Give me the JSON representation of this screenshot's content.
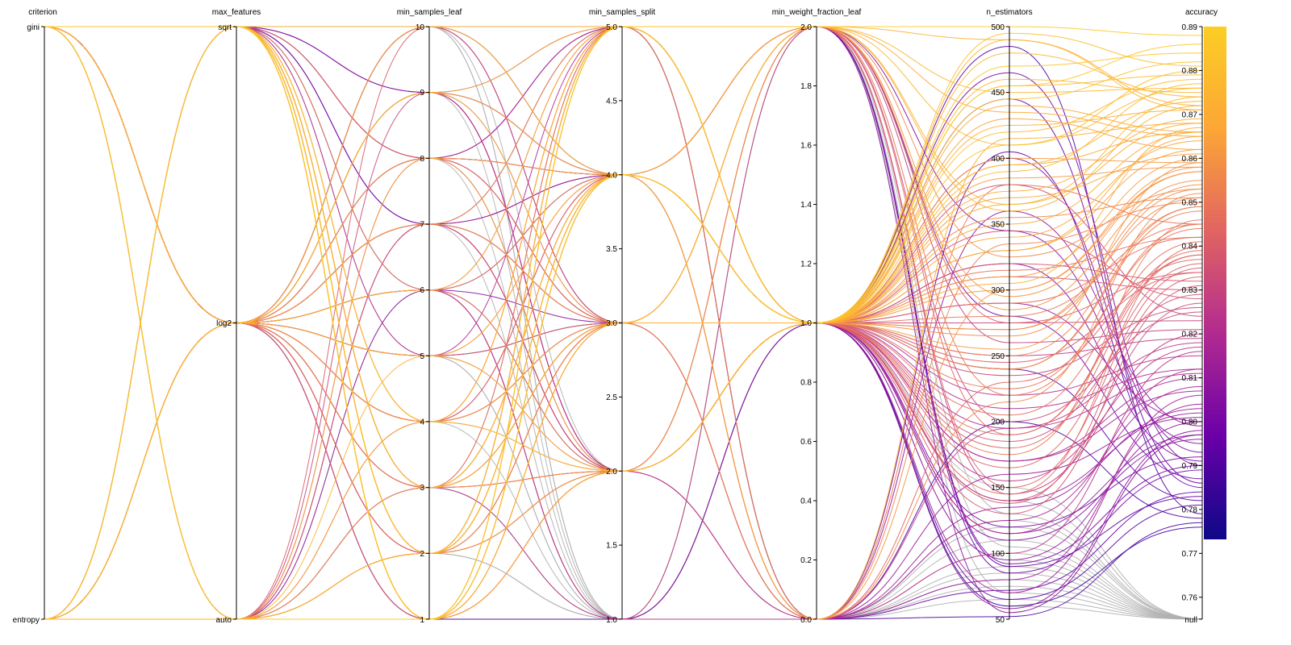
{
  "chart_data": {
    "type": "parallel-coordinates",
    "title": "",
    "dimensions": [
      {
        "name": "criterion",
        "kind": "categorical",
        "categories": [
          "gini",
          "entropy"
        ]
      },
      {
        "name": "max_features",
        "kind": "categorical",
        "categories": [
          "sqrt",
          "log2",
          "auto"
        ]
      },
      {
        "name": "min_samples_leaf",
        "kind": "numeric",
        "range": [
          1,
          10
        ],
        "ticks": [
          1,
          2,
          3,
          4,
          5,
          6,
          7,
          8,
          9,
          10
        ]
      },
      {
        "name": "min_samples_split",
        "kind": "numeric",
        "range": [
          1.0,
          5.0
        ],
        "ticks": [
          "1.0",
          "1.5",
          "2.0",
          "2.5",
          "3.0",
          "3.5",
          "4.0",
          "4.5",
          "5.0"
        ]
      },
      {
        "name": "min_weight_fraction_leaf",
        "kind": "numeric",
        "range": [
          0.0,
          2.0
        ],
        "ticks": [
          "0.0",
          "0.2",
          "0.4",
          "0.6",
          "0.8",
          "1.0",
          "1.2",
          "1.4",
          "1.6",
          "1.8",
          "2.0"
        ]
      },
      {
        "name": "n_estimators",
        "kind": "numeric",
        "range": [
          50,
          500
        ],
        "ticks": [
          "50",
          "100",
          "150",
          "200",
          "250",
          "300",
          "350",
          "400",
          "450",
          "500"
        ]
      },
      {
        "name": "accuracy",
        "kind": "numeric",
        "range": [
          0.755,
          0.89
        ],
        "ticks": [
          "0.76",
          "0.77",
          "0.78",
          "0.79",
          "0.80",
          "0.81",
          "0.82",
          "0.83",
          "0.84",
          "0.85",
          "0.86",
          "0.87",
          "0.88",
          "0.89"
        ],
        "extra_bottom_label": "null"
      }
    ],
    "colorscale": {
      "name": "plasma",
      "domain": [
        0.76,
        0.89
      ],
      "null_color": "#b0b0b0",
      "stops": [
        "#0d0887",
        "#6a00a8",
        "#b12a90",
        "#e16462",
        "#fca636",
        "#fcce25"
      ]
    },
    "grid": false,
    "legend": "colorbar-right",
    "rows": [
      [
        "gini",
        "log2",
        10,
        5.0,
        2.0,
        490,
        0.871
      ],
      [
        "gini",
        "log2",
        9,
        4.0,
        1.0,
        430,
        0.862
      ],
      [
        "gini",
        "sqrt",
        8,
        3.0,
        0.0,
        380,
        0.845
      ],
      [
        "gini",
        "auto",
        7,
        2.0,
        1.0,
        320,
        0.832
      ],
      [
        "gini",
        "log2",
        6,
        1.0,
        2.0,
        260,
        0.821
      ],
      [
        "gini",
        "sqrt",
        5,
        5.0,
        1.0,
        210,
        0.812
      ],
      [
        "gini",
        "log2",
        4,
        4.0,
        0.0,
        160,
        0.801
      ],
      [
        "gini",
        "auto",
        3,
        3.0,
        1.0,
        120,
        0.792
      ],
      [
        "gini",
        "log2",
        2,
        2.0,
        2.0,
        90,
        0.783
      ],
      [
        "gini",
        "log2",
        1,
        1.0,
        1.0,
        60,
        0.776
      ],
      [
        "entropy",
        "sqrt",
        10,
        4.0,
        1.0,
        470,
        0.884
      ],
      [
        "entropy",
        "log2",
        9,
        3.0,
        2.0,
        410,
        0.876
      ],
      [
        "entropy",
        "auto",
        8,
        2.0,
        1.0,
        350,
        0.866
      ],
      [
        "entropy",
        "log2",
        7,
        5.0,
        0.0,
        300,
        0.857
      ],
      [
        "entropy",
        "sqrt",
        6,
        4.0,
        1.0,
        250,
        0.849
      ],
      [
        "entropy",
        "log2",
        5,
        3.0,
        2.0,
        190,
        0.838
      ],
      [
        "entropy",
        "auto",
        4,
        2.0,
        1.0,
        140,
        0.827
      ],
      [
        "entropy",
        "log2",
        3,
        1.0,
        0.0,
        100,
        0.816
      ],
      [
        "entropy",
        "sqrt",
        2,
        5.0,
        1.0,
        70,
        0.806
      ],
      [
        "entropy",
        "log2",
        1,
        4.0,
        2.0,
        55,
        0.797
      ],
      [
        "gini",
        "sqrt",
        1,
        5.0,
        2.0,
        500,
        0.888
      ],
      [
        "gini",
        "sqrt",
        2,
        4.0,
        1.0,
        455,
        0.879
      ],
      [
        "gini",
        "sqrt",
        3,
        4.0,
        1.0,
        395,
        0.873
      ],
      [
        "gini",
        "sqrt",
        4,
        5.0,
        1.0,
        365,
        0.868
      ],
      [
        "gini",
        "sqrt",
        1,
        3.0,
        1.0,
        340,
        0.864
      ],
      [
        "gini",
        "sqrt",
        2,
        2.0,
        1.0,
        310,
        0.86
      ],
      [
        "gini",
        "sqrt",
        1,
        4.0,
        2.0,
        285,
        0.855
      ],
      [
        "gini",
        "sqrt",
        3,
        5.0,
        1.0,
        270,
        0.851
      ],
      [
        "gini",
        "sqrt",
        2,
        3.0,
        1.0,
        240,
        0.848
      ],
      [
        "gini",
        "sqrt",
        1,
        2.0,
        1.0,
        225,
        0.844
      ],
      [
        "gini",
        "sqrt",
        4,
        4.0,
        1.0,
        205,
        0.841
      ],
      [
        "gini",
        "sqrt",
        1,
        5.0,
        1.0,
        180,
        0.838
      ],
      [
        "gini",
        "sqrt",
        2,
        4.0,
        2.0,
        150,
        0.835
      ],
      [
        "gini",
        "sqrt",
        3,
        3.0,
        1.0,
        130,
        0.831
      ],
      [
        "gini",
        "sqrt",
        1,
        4.0,
        1.0,
        420,
        0.878
      ],
      [
        "gini",
        "sqrt",
        2,
        5.0,
        1.0,
        445,
        0.882
      ],
      [
        "gini",
        "sqrt",
        1,
        3.0,
        1.0,
        375,
        0.869
      ],
      [
        "gini",
        "sqrt",
        3,
        4.0,
        1.0,
        330,
        0.862
      ],
      [
        "gini",
        "sqrt",
        1,
        2.0,
        2.0,
        295,
        0.857
      ],
      [
        "gini",
        "sqrt",
        2,
        4.0,
        1.0,
        265,
        0.853
      ],
      [
        "gini",
        "log2",
        9,
        5.0,
        1.0,
        480,
        0.874
      ],
      [
        "gini",
        "log2",
        8,
        4.0,
        1.0,
        440,
        0.866
      ],
      [
        "gini",
        "log2",
        7,
        3.0,
        1.0,
        400,
        0.859
      ],
      [
        "gini",
        "log2",
        6,
        2.0,
        1.0,
        355,
        0.851
      ],
      [
        "gini",
        "log2",
        5,
        4.0,
        1.0,
        315,
        0.842
      ],
      [
        "gini",
        "log2",
        4,
        5.0,
        2.0,
        275,
        0.834
      ],
      [
        "gini",
        "log2",
        3,
        3.0,
        1.0,
        235,
        0.826
      ],
      [
        "gini",
        "log2",
        2,
        2.0,
        0.0,
        195,
        0.818
      ],
      [
        "gini",
        "log2",
        10,
        4.0,
        1.0,
        170,
        0.81
      ],
      [
        "gini",
        "log2",
        9,
        3.0,
        0.0,
        135,
        0.803
      ],
      [
        "gini",
        "log2",
        8,
        2.0,
        1.0,
        110,
        0.796
      ],
      [
        "gini",
        "log2",
        7,
        5.0,
        2.0,
        85,
        0.789
      ],
      [
        "gini",
        "log2",
        6,
        4.0,
        1.0,
        65,
        0.781
      ],
      [
        "gini",
        "log2",
        5,
        3.0,
        0.0,
        52,
        0.777
      ],
      [
        "gini",
        "log2",
        10,
        3.0,
        1.0,
        465,
        0.79
      ],
      [
        "gini",
        "log2",
        8,
        5.0,
        0.0,
        405,
        0.785
      ],
      [
        "gini",
        "log2",
        7,
        4.0,
        2.0,
        345,
        0.795
      ],
      [
        "gini",
        "log2",
        9,
        2.0,
        1.0,
        290,
        0.8
      ],
      [
        "entropy",
        "log2",
        6,
        5.0,
        1.0,
        460,
        0.875
      ],
      [
        "entropy",
        "log2",
        5,
        4.0,
        0.0,
        415,
        0.868
      ],
      [
        "entropy",
        "log2",
        4,
        3.0,
        1.0,
        370,
        0.861
      ],
      [
        "entropy",
        "log2",
        3,
        2.0,
        2.0,
        325,
        0.853
      ],
      [
        "entropy",
        "log2",
        2,
        5.0,
        1.0,
        280,
        0.845
      ],
      [
        "entropy",
        "log2",
        1,
        4.0,
        0.0,
        230,
        0.837
      ],
      [
        "entropy",
        "log2",
        10,
        3.0,
        1.0,
        185,
        0.829
      ],
      [
        "entropy",
        "log2",
        9,
        2.0,
        2.0,
        145,
        0.82
      ],
      [
        "entropy",
        "log2",
        8,
        5.0,
        1.0,
        115,
        0.812
      ],
      [
        "entropy",
        "log2",
        7,
        4.0,
        0.0,
        80,
        0.804
      ],
      [
        "entropy",
        "log2",
        6,
        3.0,
        1.0,
        58,
        0.798
      ],
      [
        "entropy",
        "auto",
        5,
        2.0,
        1.0,
        490,
        0.872
      ],
      [
        "entropy",
        "auto",
        4,
        5.0,
        2.0,
        435,
        0.865
      ],
      [
        "entropy",
        "auto",
        3,
        4.0,
        1.0,
        385,
        0.858
      ],
      [
        "entropy",
        "auto",
        2,
        3.0,
        0.0,
        335,
        0.85
      ],
      [
        "entropy",
        "auto",
        1,
        2.0,
        1.0,
        290,
        0.842
      ],
      [
        "entropy",
        "auto",
        10,
        5.0,
        1.0,
        245,
        0.834
      ],
      [
        "entropy",
        "auto",
        9,
        4.0,
        2.0,
        200,
        0.825
      ],
      [
        "entropy",
        "auto",
        8,
        3.0,
        1.0,
        155,
        0.817
      ],
      [
        "entropy",
        "auto",
        7,
        2.0,
        0.0,
        125,
        0.808
      ],
      [
        "entropy",
        "auto",
        6,
        1.0,
        1.0,
        95,
        0.8
      ],
      [
        "gini",
        "auto",
        1,
        1.0,
        0.0,
        100,
        null
      ],
      [
        "gini",
        "auto",
        2,
        1.0,
        0.0,
        80,
        null
      ],
      [
        "gini",
        "auto",
        3,
        1.0,
        1.0,
        60,
        null
      ],
      [
        "gini",
        "sqrt",
        4,
        1.0,
        0.0,
        110,
        null
      ],
      [
        "gini",
        "sqrt",
        10,
        1.0,
        2.0,
        130,
        null
      ],
      [
        "gini",
        "log2",
        9,
        1.0,
        0.0,
        75,
        null
      ],
      [
        "gini",
        "sqrt",
        8,
        1.0,
        1.0,
        140,
        null
      ],
      [
        "gini",
        "auto",
        7,
        1.0,
        0.0,
        90,
        null
      ],
      [
        "entropy",
        "auto",
        6,
        1.0,
        2.0,
        70,
        null
      ],
      [
        "entropy",
        "sqrt",
        5,
        1.0,
        0.0,
        120,
        null
      ],
      [
        "gini",
        "log2",
        5,
        1.0,
        1.0,
        150,
        null
      ],
      [
        "gini",
        "sqrt",
        3,
        1.0,
        0.0,
        65,
        null
      ],
      [
        "gini",
        "auto",
        2,
        1.0,
        2.0,
        105,
        null
      ],
      [
        "gini",
        "log2",
        1,
        1.0,
        0.0,
        85,
        null
      ],
      [
        "gini",
        "sqrt",
        10,
        2.0,
        0.0,
        125,
        null
      ],
      [
        "gini",
        "log2",
        10,
        1.0,
        1.0,
        95,
        null
      ],
      [
        "gini",
        "auto",
        1,
        4.0,
        1.0,
        455,
        0.886
      ],
      [
        "gini",
        "auto",
        1,
        5.0,
        1.0,
        410,
        0.88
      ],
      [
        "gini",
        "auto",
        2,
        4.0,
        2.0,
        365,
        0.874
      ],
      [
        "gini",
        "auto",
        1,
        3.0,
        1.0,
        305,
        0.867
      ],
      [
        "gini",
        "auto",
        2,
        2.0,
        1.0,
        255,
        0.859
      ],
      [
        "gini",
        "auto",
        1,
        4.0,
        0.0,
        215,
        0.852
      ],
      [
        "gini",
        "sqrt",
        3,
        2.0,
        1.0,
        175,
        0.846
      ],
      [
        "gini",
        "sqrt",
        2,
        3.0,
        1.0,
        145,
        0.84
      ],
      [
        "gini",
        "sqrt",
        1,
        4.0,
        1.0,
        390,
        0.877
      ],
      [
        "gini",
        "sqrt",
        2,
        5.0,
        2.0,
        360,
        0.872
      ],
      [
        "gini",
        "sqrt",
        1,
        2.0,
        1.0,
        330,
        0.865
      ],
      [
        "gini",
        "sqrt",
        3,
        3.0,
        1.0,
        300,
        0.858
      ],
      [
        "gini",
        "sqrt",
        2,
        4.0,
        1.0,
        270,
        0.854
      ],
      [
        "gini",
        "sqrt",
        1,
        5.0,
        1.0,
        240,
        0.849
      ],
      [
        "gini",
        "sqrt",
        2,
        3.0,
        2.0,
        220,
        0.845
      ],
      [
        "gini",
        "sqrt",
        1,
        2.0,
        1.0,
        190,
        0.839
      ],
      [
        "gini",
        "sqrt",
        3,
        4.0,
        1.0,
        165,
        0.836
      ],
      [
        "gini",
        "sqrt",
        1,
        3.0,
        1.0,
        138,
        0.833
      ],
      [
        "entropy",
        "sqrt",
        4,
        2.0,
        1.0,
        495,
        0.881
      ],
      [
        "entropy",
        "sqrt",
        3,
        3.0,
        2.0,
        450,
        0.876
      ],
      [
        "entropy",
        "sqrt",
        2,
        4.0,
        1.0,
        425,
        0.871
      ],
      [
        "entropy",
        "sqrt",
        1,
        5.0,
        1.0,
        395,
        0.866
      ],
      [
        "gini",
        "log2",
        3,
        2.0,
        1.0,
        380,
        0.824
      ],
      [
        "gini",
        "log2",
        4,
        3.0,
        1.0,
        345,
        0.828
      ],
      [
        "gini",
        "log2",
        2,
        4.0,
        1.0,
        310,
        0.83
      ],
      [
        "gini",
        "log2",
        6,
        5.0,
        1.0,
        275,
        0.823
      ],
      [
        "gini",
        "log2",
        5,
        2.0,
        1.0,
        250,
        0.819
      ],
      [
        "gini",
        "log2",
        7,
        3.0,
        1.0,
        220,
        0.815
      ],
      [
        "gini",
        "log2",
        8,
        4.0,
        1.0,
        195,
        0.811
      ],
      [
        "gini",
        "log2",
        3,
        5.0,
        1.0,
        170,
        0.807
      ],
      [
        "gini",
        "log2",
        9,
        2.0,
        1.0,
        140,
        0.802
      ],
      [
        "gini",
        "log2",
        4,
        3.0,
        1.0,
        115,
        0.797
      ],
      [
        "gini",
        "log2",
        10,
        4.0,
        2.0,
        92,
        0.79
      ],
      [
        "gini",
        "log2",
        2,
        5.0,
        0.0,
        72,
        0.784
      ],
      [
        "gini",
        "sqrt",
        6,
        2.0,
        1.0,
        485,
        0.779
      ],
      [
        "gini",
        "sqrt",
        7,
        3.0,
        1.0,
        445,
        0.786
      ],
      [
        "gini",
        "sqrt",
        8,
        4.0,
        1.0,
        400,
        0.793
      ],
      [
        "gini",
        "sqrt",
        9,
        5.0,
        0.0,
        360,
        0.799
      ],
      [
        "entropy",
        "sqrt",
        7,
        2.0,
        1.0,
        320,
        0.791
      ],
      [
        "entropy",
        "sqrt",
        8,
        3.0,
        2.0,
        280,
        0.787
      ],
      [
        "entropy",
        "sqrt",
        9,
        4.0,
        1.0,
        240,
        0.782
      ],
      [
        "entropy",
        "sqrt",
        10,
        5.0,
        0.0,
        200,
        0.778
      ]
    ]
  }
}
